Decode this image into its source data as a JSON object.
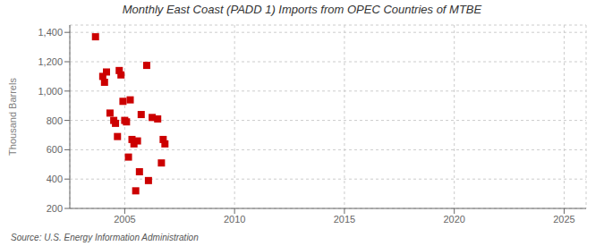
{
  "chart_data": {
    "type": "scatter",
    "title": "Monthly East Coast (PADD 1) Imports from OPEC Countries of MTBE",
    "ylabel": "Thousand Barrels",
    "annotations": [
      "Source: U.S. Energy Information Administration"
    ],
    "color": "#cc0000",
    "marker": "square",
    "grid": true,
    "xlim": [
      2002.5,
      2026
    ],
    "ylim": [
      200,
      1450
    ],
    "xticks": [
      2005,
      2010,
      2015,
      2020,
      2025
    ],
    "yticks": [
      200,
      400,
      600,
      800,
      {
        "value": 1000,
        "label": "1,000"
      },
      {
        "value": 1200,
        "label": "1,200"
      },
      {
        "value": 1400,
        "label": "1,400"
      }
    ],
    "x": [
      2003.67,
      2004.0,
      2004.08,
      2004.17,
      2004.33,
      2004.5,
      2004.58,
      2004.67,
      2004.75,
      2004.83,
      2004.92,
      2005.0,
      2005.08,
      2005.17,
      2005.25,
      2005.33,
      2005.42,
      2005.5,
      2005.58,
      2005.67,
      2005.75,
      2006.0,
      2006.08,
      2006.25,
      2006.5,
      2006.67,
      2006.75,
      2006.83
    ],
    "values": [
      1370,
      1100,
      1060,
      1130,
      850,
      800,
      780,
      690,
      1140,
      1110,
      930,
      800,
      790,
      550,
      940,
      670,
      640,
      320,
      660,
      450,
      840,
      1175,
      390,
      820,
      810,
      510,
      670,
      640
    ]
  }
}
